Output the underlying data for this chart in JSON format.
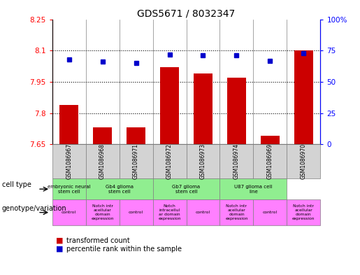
{
  "title": "GDS5671 / 8032347",
  "samples": [
    "GSM1086967",
    "GSM1086968",
    "GSM1086971",
    "GSM1086972",
    "GSM1086973",
    "GSM1086974",
    "GSM1086969",
    "GSM1086970"
  ],
  "transformed_counts": [
    7.84,
    7.73,
    7.73,
    8.02,
    7.99,
    7.97,
    7.69,
    8.1
  ],
  "percentile_ranks": [
    68,
    66,
    65,
    72,
    71,
    71,
    67,
    73
  ],
  "ylim_left": [
    7.65,
    8.25
  ],
  "ylim_right": [
    0,
    100
  ],
  "yticks_left": [
    7.65,
    7.8,
    7.95,
    8.1,
    8.25
  ],
  "ytick_labels_left": [
    "7.65",
    "7.8",
    "7.95",
    "8.1",
    "8.25"
  ],
  "yticks_right": [
    0,
    25,
    50,
    75,
    100
  ],
  "ytick_labels_right": [
    "0",
    "25",
    "50",
    "75",
    "100%"
  ],
  "bar_color": "#cc0000",
  "dot_color": "#0000cc",
  "sample_bg": "#d3d3d3",
  "cell_type_bg": "#90ee90",
  "geno_bg": "#ff80ff",
  "cell_groups": [
    {
      "start": 0,
      "end": 1,
      "label": "embryonic neural\nstem cell"
    },
    {
      "start": 1,
      "end": 3,
      "label": "Gb4 glioma\nstem cell"
    },
    {
      "start": 3,
      "end": 5,
      "label": "Gb7 glioma\nstem cell"
    },
    {
      "start": 5,
      "end": 7,
      "label": "U87 glioma cell\nline"
    }
  ],
  "geno_groups": [
    {
      "start": 0,
      "end": 1,
      "label": "control"
    },
    {
      "start": 1,
      "end": 2,
      "label": "Notch intr\nacellular\ndomain\nexpression"
    },
    {
      "start": 2,
      "end": 3,
      "label": "control"
    },
    {
      "start": 3,
      "end": 4,
      "label": "Notch\nintracellul\nar domain\nexpression"
    },
    {
      "start": 4,
      "end": 5,
      "label": "control"
    },
    {
      "start": 5,
      "end": 6,
      "label": "Notch intr\nacellular\ndomain\nexpression"
    },
    {
      "start": 6,
      "end": 7,
      "label": "control"
    },
    {
      "start": 7,
      "end": 8,
      "label": "Notch intr\nacellular\ndomain\nexpression"
    }
  ],
  "row_label_cell_type": "cell type",
  "row_label_genotype": "genotype/variation",
  "legend_red": "transformed count",
  "legend_blue": "percentile rank within the sample",
  "background_color": "#ffffff"
}
